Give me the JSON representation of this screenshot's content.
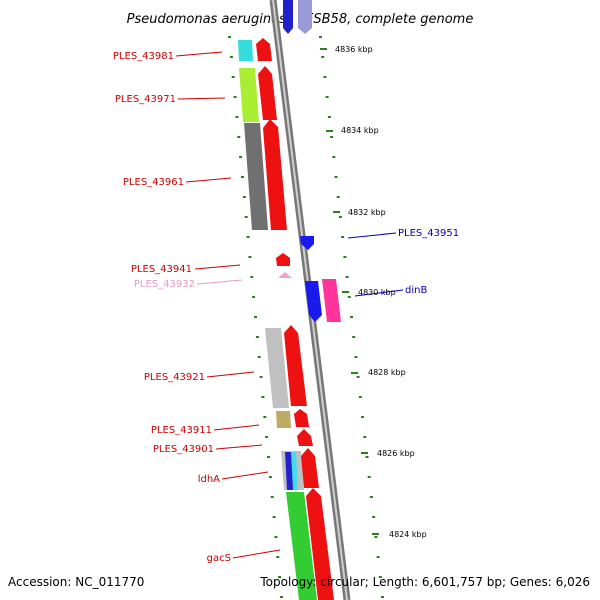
{
  "title": "Pseudomonas aeruginosa LESB58, complete genome",
  "footer": {
    "accession": "Accession: NC_011770",
    "topology": "Topology: circular; Length: 6,601,757 bp; Genes: 6,026"
  },
  "colors": {
    "backbone": "#9a9a9a",
    "tick": "#2e7d1f",
    "gene_label_forward": "#cc0000",
    "gene_label_reverse": "#0000bb",
    "pseudo_label": "#e899c4"
  },
  "scale_labels": [
    "4836 kbp",
    "4834 kbp",
    "4832 kbp",
    "4830 kbp",
    "4828 kbp",
    "4826 kbp",
    "4824 kbp"
  ],
  "gene_labels": [
    {
      "text": "PLES_43981",
      "color": "#cc0000",
      "side": "left"
    },
    {
      "text": "PLES_43971",
      "color": "#cc0000",
      "side": "left"
    },
    {
      "text": "PLES_43961",
      "color": "#cc0000",
      "side": "left"
    },
    {
      "text": "PLES_43951",
      "color": "#0000bb",
      "side": "right"
    },
    {
      "text": "PLES_43941",
      "color": "#cc0000",
      "side": "left"
    },
    {
      "text": "PLES_43932",
      "color": "#e899c4",
      "side": "left"
    },
    {
      "text": "dinB",
      "color": "#0000bb",
      "side": "right"
    },
    {
      "text": "PLES_43921",
      "color": "#cc0000",
      "side": "left"
    },
    {
      "text": "PLES_43911",
      "color": "#cc0000",
      "side": "left"
    },
    {
      "text": "PLES_43901",
      "color": "#cc0000",
      "side": "left"
    },
    {
      "text": "ldhA",
      "color": "#cc0000",
      "side": "left"
    },
    {
      "text": "gacS",
      "color": "#cc0000",
      "side": "left"
    }
  ]
}
